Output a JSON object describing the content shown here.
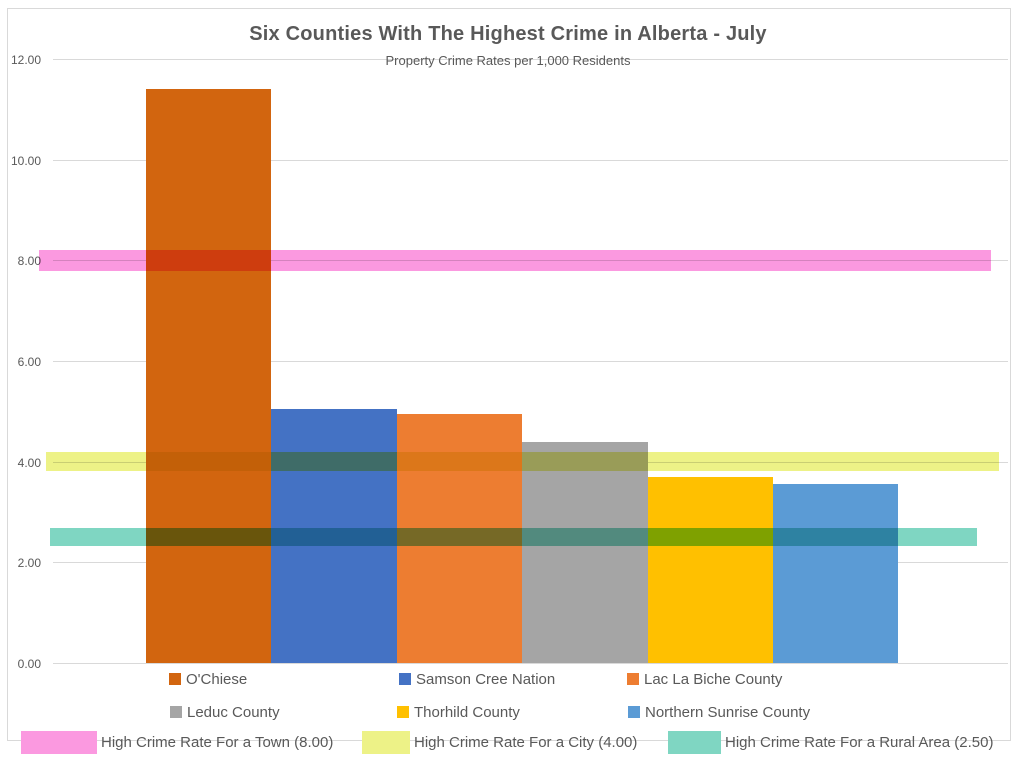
{
  "chart": {
    "title": "Six Counties With The Highest Crime in Alberta - July",
    "subtitle": "Property Crime Rates per 1,000 Residents"
  },
  "chart_data": {
    "type": "bar",
    "title": "Six Counties With The Highest Crime in Alberta - July",
    "subtitle": "Property Crime Rates per 1,000 Residents",
    "categories": [
      "O'Chiese",
      "Samson Cree Nation",
      "Lac La Biche County",
      "Leduc County",
      "Thorhild County",
      "Northern Sunrise County"
    ],
    "values": [
      11.4,
      5.05,
      4.95,
      4.4,
      3.7,
      3.55
    ],
    "series_colors": [
      "#D2650F",
      "#4472C4",
      "#ED7D31",
      "#A5A5A5",
      "#FFC000",
      "#5B9BD5"
    ],
    "ylim": [
      0,
      12
    ],
    "ytick_labels": [
      "0.00",
      "2.00",
      "4.00",
      "6.00",
      "8.00",
      "10.00",
      "12.00"
    ],
    "grid": true,
    "legend_position": "bottom",
    "bands": [
      {
        "label": "High Crime Rate For a Town (8.00)",
        "value": 8.0,
        "color": "#FB99E0"
      },
      {
        "label": "High Crime Rate For a City (4.00)",
        "value": 4.0,
        "color": "#EDF287"
      },
      {
        "label": "High Crime Rate For a Rural Area (2.50)",
        "value": 2.5,
        "color": "#7FD6C2"
      }
    ],
    "colors": {
      "text": "#595959",
      "gridline": "#D9D9D9",
      "chart_border": "#D9D9D9"
    }
  }
}
